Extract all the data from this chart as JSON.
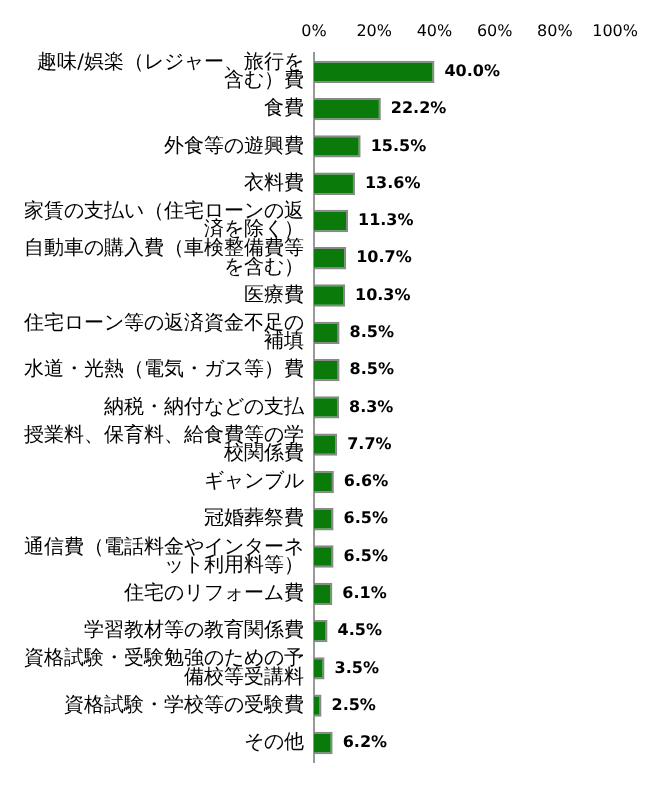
{
  "chart_data": {
    "type": "bar",
    "orientation": "horizontal",
    "categories": [
      "趣味/娯楽（レジャー、旅行を含む）費",
      "食費",
      "外食等の遊興費",
      "衣料費",
      "家賃の支払い（住宅ローンの返済を除く）",
      "自動車の購入費（車検整備費等を含む）",
      "医療費",
      "住宅ローン等の返済資金不足の補填",
      "水道・光熱（電気・ガス等）費",
      "納税・納付などの支払",
      "授業料、保育料、給食費等の学校関係費",
      "ギャンブル",
      "冠婚葬祭費",
      "通信費（電話料金やインターネット利用料等）",
      "住宅のリフォーム費",
      "学習教材等の教育関係費",
      "資格試験・受験勉強のための予備校等受講料",
      "資格試験・学校等の受験費",
      "その他"
    ],
    "values": [
      40.0,
      22.2,
      15.5,
      13.6,
      11.3,
      10.7,
      10.3,
      8.5,
      8.5,
      8.3,
      7.7,
      6.6,
      6.5,
      6.5,
      6.1,
      4.5,
      3.5,
      2.5,
      6.2
    ],
    "value_labels": [
      "40.0%",
      "22.2%",
      "15.5%",
      "13.6%",
      "11.3%",
      "10.7%",
      "10.3%",
      "8.5%",
      "8.5%",
      "8.3%",
      "7.7%",
      "6.6%",
      "6.5%",
      "6.5%",
      "6.1%",
      "4.5%",
      "3.5%",
      "2.5%",
      "6.2%"
    ],
    "color": "#0a7a0a",
    "xlim": [
      0,
      100
    ],
    "xticks": [
      {
        "value": 0,
        "label": "0%"
      },
      {
        "value": 20,
        "label": "20%"
      },
      {
        "value": 40,
        "label": "40%"
      },
      {
        "value": 60,
        "label": "60%"
      },
      {
        "value": 80,
        "label": "80%"
      },
      {
        "value": 100,
        "label": "100%"
      }
    ],
    "grid": false,
    "legend": false
  }
}
